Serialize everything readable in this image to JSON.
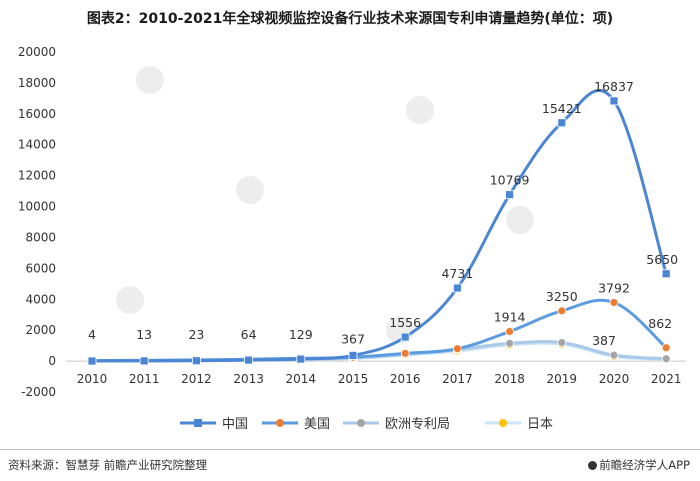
{
  "title": "图表2：2010-2021年全球视频监控设备行业技术来源国专利申请量趋势(单位：项)",
  "footer": {
    "source": "资料来源：智慧芽 前瞻产业研究院整理",
    "brand": "前瞻经济学人APP"
  },
  "chart_data": {
    "type": "line",
    "title": "图表2：2010-2021年全球视频监控设备行业技术来源国专利申请量趋势(单位：项)",
    "xlabel": "",
    "ylabel": "",
    "categories": [
      "2010",
      "2011",
      "2012",
      "2013",
      "2014",
      "2015",
      "2016",
      "2017",
      "2018",
      "2019",
      "2020",
      "2021"
    ],
    "ylim": [
      -2000,
      20000
    ],
    "yticks": [
      -2000,
      0,
      2000,
      4000,
      6000,
      8000,
      10000,
      12000,
      14000,
      16000,
      18000,
      20000
    ],
    "legend_position": "bottom",
    "grid": false,
    "series": [
      {
        "name": "中国",
        "color": "#4a86d4",
        "marker": "square",
        "values": [
          4,
          13,
          23,
          64,
          129,
          367,
          1556,
          4731,
          10769,
          15421,
          16837,
          5650
        ],
        "labeled": true
      },
      {
        "name": "美国",
        "color": "#5b9be0",
        "marker": "circle-orange",
        "values": [
          30,
          50,
          80,
          120,
          180,
          250,
          500,
          800,
          1914,
          3250,
          3792,
          862
        ],
        "labeled_from": 8
      },
      {
        "name": "欧洲专利局",
        "color": "#a9c8ea",
        "marker": "circle-gray",
        "values": [
          20,
          40,
          60,
          90,
          130,
          200,
          450,
          750,
          1150,
          1200,
          387,
          150
        ],
        "labeled_at": [
          10
        ]
      },
      {
        "name": "日本",
        "color": "#c9e4f5",
        "marker": "circle-yellow",
        "values": [
          10,
          25,
          45,
          70,
          110,
          170,
          380,
          650,
          1050,
          1100,
          300,
          120
        ]
      }
    ]
  }
}
